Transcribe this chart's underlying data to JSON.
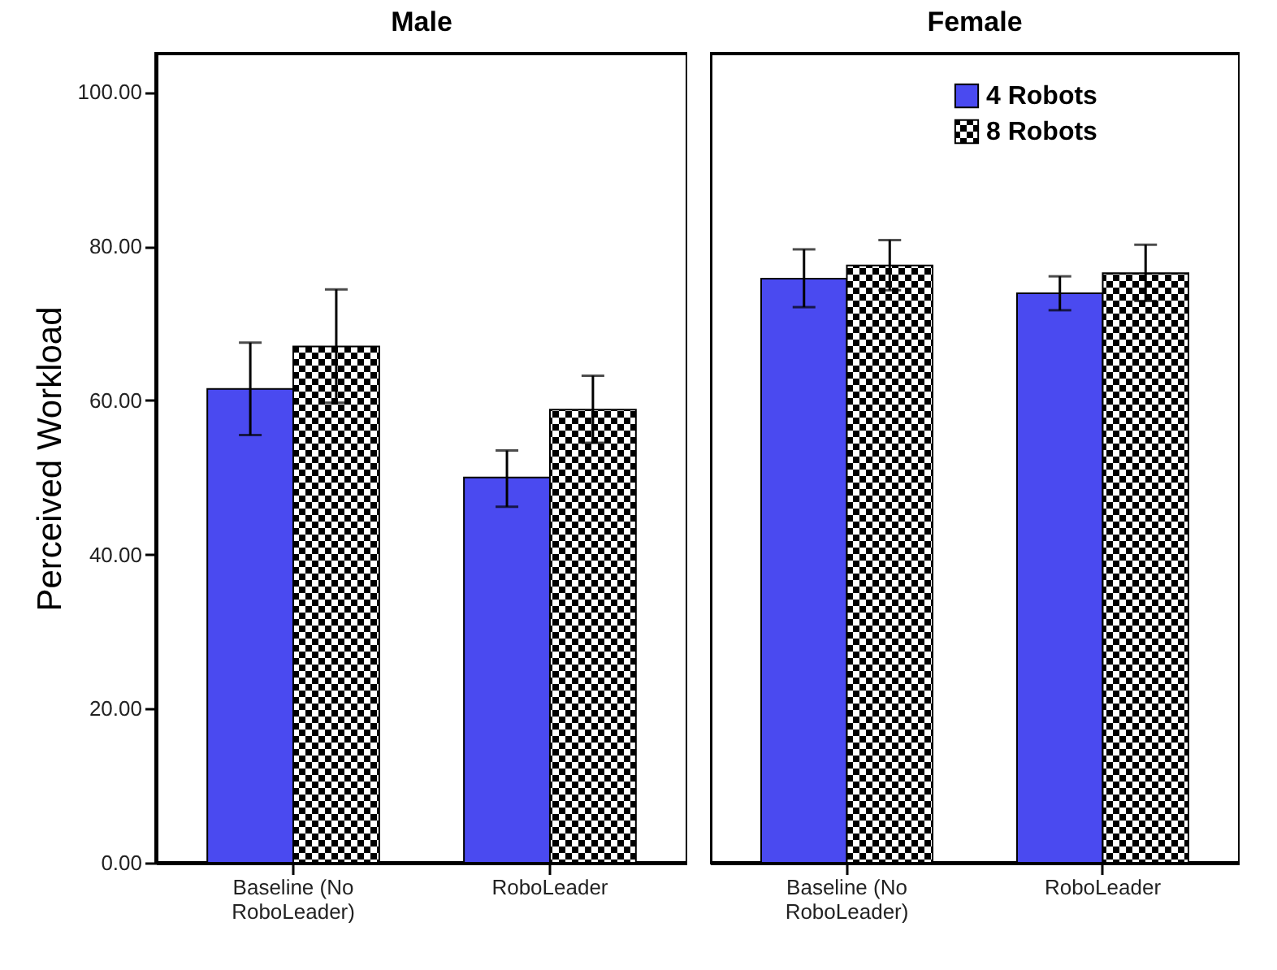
{
  "chart_data": [
    {
      "type": "bar",
      "title": "Male",
      "ylabel": "Perceived Workload",
      "categories": [
        "Baseline (No RoboLeader)",
        "RoboLeader"
      ],
      "ylim": [
        0,
        105
      ],
      "yticks": [
        {
          "value": 0,
          "label": "0.00"
        },
        {
          "value": 20,
          "label": "20.00"
        },
        {
          "value": 40,
          "label": "40.00"
        },
        {
          "value": 60,
          "label": "60.00"
        },
        {
          "value": 80,
          "label": "80.00"
        },
        {
          "value": 100,
          "label": "100.00"
        }
      ],
      "grid": false,
      "series": [
        {
          "color": "#4a4af0",
          "values": [
            61.5,
            50
          ],
          "errors": [
            [
              55.5,
              67.5
            ],
            [
              46.2,
              53.5
            ]
          ]
        },
        {
          "color": "#000000",
          "values": [
            67,
            58.8
          ],
          "errors": [
            [
              59.7,
              74.4
            ],
            [
              54.5,
              63.2
            ]
          ]
        }
      ]
    },
    {
      "type": "bar",
      "title": "Female",
      "categories": [
        "Baseline (No RoboLeader)",
        "RoboLeader"
      ],
      "ylim": [
        0,
        105
      ],
      "tick_labels": "x",
      "grid": false,
      "legend": "top",
      "series": [
        {
          "name": "4 Robots",
          "color": "#4a4af0",
          "values": [
            75.8,
            73.9
          ],
          "errors": [
            [
              72.1,
              79.6
            ],
            [
              71.7,
              76.1
            ]
          ]
        },
        {
          "name": "8 Robots",
          "color": "#000000",
          "values": [
            77.5,
            76.5
          ],
          "errors": [
            [
              74.3,
              80.8
            ],
            [
              72.9,
              80.2
            ]
          ]
        }
      ]
    }
  ]
}
